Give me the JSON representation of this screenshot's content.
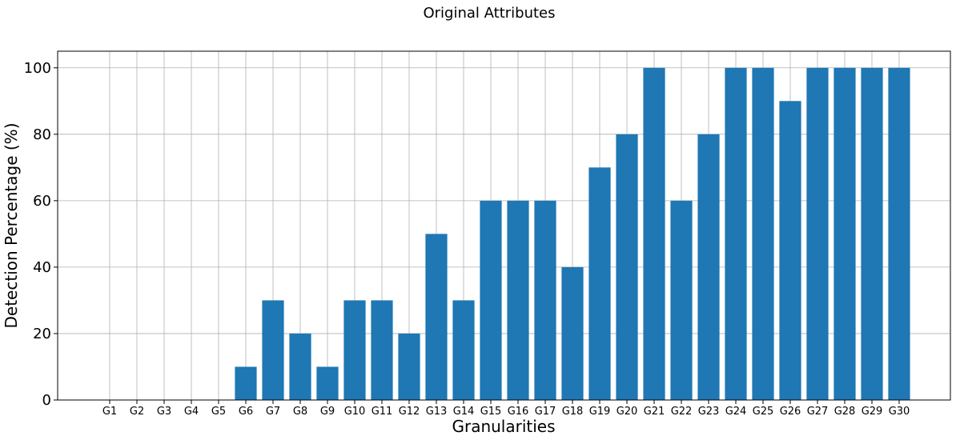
{
  "chart_data": {
    "type": "bar",
    "title": "Original Attributes",
    "xlabel": "Granularities",
    "ylabel": "Detection Percentage (%)",
    "categories": [
      "G1",
      "G2",
      "G3",
      "G4",
      "G5",
      "G6",
      "G7",
      "G8",
      "G9",
      "G10",
      "G11",
      "G12",
      "G13",
      "G14",
      "G15",
      "G16",
      "G17",
      "G18",
      "G19",
      "G20",
      "G21",
      "G22",
      "G23",
      "G24",
      "G25",
      "G26",
      "G27",
      "G28",
      "G29",
      "G30"
    ],
    "values": [
      0,
      0,
      0,
      0,
      0,
      10,
      30,
      20,
      10,
      30,
      30,
      20,
      50,
      30,
      60,
      60,
      60,
      40,
      70,
      80,
      100,
      60,
      80,
      100,
      100,
      90,
      100,
      100,
      100,
      100
    ],
    "yticks": [
      0,
      20,
      40,
      60,
      80,
      100
    ],
    "ylim": [
      0,
      105
    ],
    "grid": true,
    "bar_color": "#1f77b4",
    "grid_color": "#b0b0b0"
  }
}
